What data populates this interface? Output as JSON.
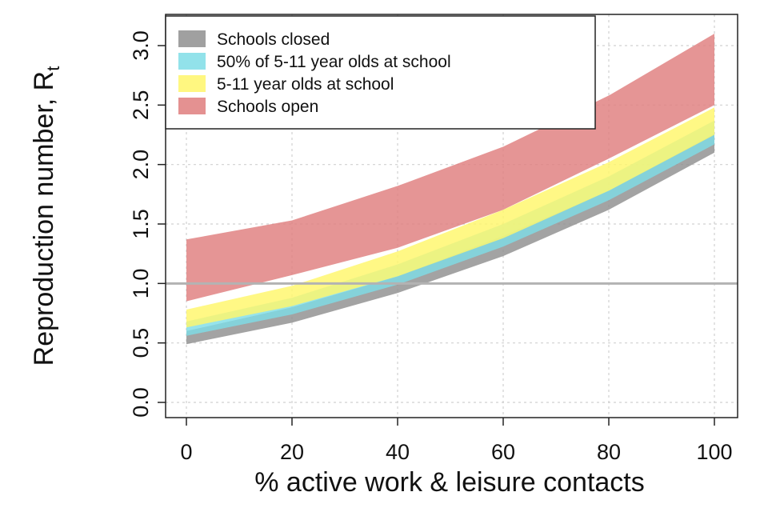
{
  "chart_data": {
    "type": "area",
    "title": "",
    "xlabel": "% active work & leisure contacts",
    "ylabel": "Reproduction number, R",
    "ylabel_subscript": "t",
    "x": [
      0,
      20,
      40,
      60,
      80,
      100
    ],
    "xticks": [
      "0",
      "20",
      "40",
      "60",
      "80",
      "100"
    ],
    "yticks": [
      "0.0",
      "0.5",
      "1.0",
      "1.5",
      "2.0",
      "2.5",
      "3.0"
    ],
    "xlim": [
      0,
      100
    ],
    "ylim": [
      0,
      3.0
    ],
    "grid": true,
    "reference_line": {
      "y": 1.0,
      "color": "#b3b3b3"
    },
    "legend_position": "top-left",
    "series": [
      {
        "name": "Schools open",
        "color": "#df7e7e",
        "lower": [
          0.85,
          1.07,
          1.3,
          1.62,
          2.05,
          2.5
        ],
        "upper": [
          1.37,
          1.53,
          1.82,
          2.15,
          2.58,
          3.1
        ]
      },
      {
        "name": "Schools closed",
        "color": "#8f8f8f",
        "lower": [
          0.49,
          0.67,
          0.92,
          1.23,
          1.62,
          2.1
        ],
        "upper": [
          0.6,
          0.8,
          1.06,
          1.4,
          1.78,
          2.26
        ]
      },
      {
        "name": "50% of 5-11 year olds at school",
        "color": "#7fdde6",
        "lower": [
          0.56,
          0.74,
          0.99,
          1.31,
          1.7,
          2.17
        ],
        "upper": [
          0.68,
          0.88,
          1.16,
          1.5,
          1.9,
          2.37
        ]
      },
      {
        "name": "5-11 year olds at school",
        "color": "#fff66a",
        "lower": [
          0.63,
          0.81,
          1.06,
          1.38,
          1.78,
          2.25
        ],
        "upper": [
          0.78,
          0.98,
          1.27,
          1.62,
          2.02,
          2.48
        ]
      }
    ],
    "legend": [
      {
        "label": "Schools closed",
        "color": "#8f8f8f"
      },
      {
        "label": "50% of 5-11 year olds at school",
        "color": "#7fdde6"
      },
      {
        "label": "5-11 year olds at school",
        "color": "#fff66a"
      },
      {
        "label": "Schools open",
        "color": "#df7e7e"
      }
    ]
  }
}
